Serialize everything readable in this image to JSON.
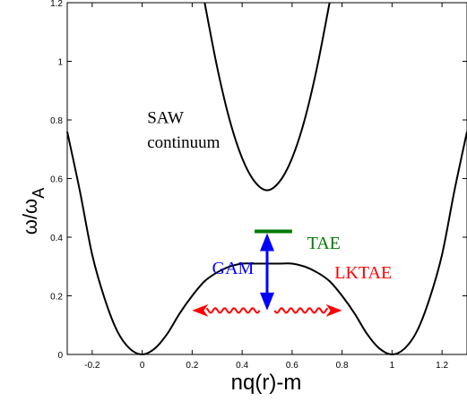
{
  "chart_data": {
    "type": "line",
    "title": "",
    "xlabel": "nq(r)-m",
    "ylabel": {
      "main": "ω/ω",
      "sub": "A"
    },
    "xlim": [
      -0.3,
      1.3
    ],
    "ylim": [
      0,
      1.2
    ],
    "x_ticks": [
      -0.2,
      0,
      0.2,
      0.4,
      0.6,
      0.8,
      1,
      1.2
    ],
    "x_tick_labels": [
      "-0.2",
      "0",
      "0.2",
      "0.4",
      "0.6",
      "0.8",
      "1",
      "1.2"
    ],
    "y_ticks": [
      0,
      0.2,
      0.4,
      0.6,
      0.8,
      1,
      1.2
    ],
    "y_tick_labels": [
      "0",
      "0.2",
      "0.4",
      "0.6",
      "0.8",
      "1",
      "1.2"
    ],
    "grid": false,
    "legend": "none",
    "series": [
      {
        "color": "#000000",
        "x": [
          -0.3,
          -0.25,
          -0.2,
          -0.15,
          -0.1,
          -0.05,
          0,
          0.05,
          0.1,
          0.15,
          0.2,
          0.25,
          0.3,
          0.35,
          0.4,
          0.45,
          0.5,
          0.55,
          0.6,
          0.65,
          0.7,
          0.75,
          0.8,
          0.85,
          0.9,
          0.95,
          1,
          1.05,
          1.1,
          1.15,
          1.2,
          1.25,
          1.3
        ],
        "y": [
          0.76,
          0.56,
          0.34,
          0.19,
          0.08,
          0.02,
          0,
          0.02,
          0.07,
          0.14,
          0.2,
          0.25,
          0.28,
          0.3,
          0.31,
          0.31,
          0.31,
          0.31,
          0.31,
          0.3,
          0.28,
          0.25,
          0.2,
          0.14,
          0.07,
          0.02,
          0,
          0.02,
          0.08,
          0.19,
          0.34,
          0.56,
          0.76
        ]
      },
      {
        "color": "#000000",
        "x": [
          0.25,
          0.3,
          0.35,
          0.4,
          0.45,
          0.5,
          0.55,
          0.6,
          0.65,
          0.7,
          0.75
        ],
        "y": [
          1.2,
          0.98,
          0.8,
          0.67,
          0.59,
          0.56,
          0.59,
          0.67,
          0.8,
          0.98,
          1.2
        ]
      }
    ],
    "annotations": [
      {
        "id": "saw-line1",
        "text": "SAW",
        "x": 0.02,
        "y": 0.79,
        "color": "#000000"
      },
      {
        "id": "saw-line2",
        "text": "continuum",
        "x": 0.02,
        "y": 0.705,
        "color": "#000000"
      },
      {
        "id": "tae",
        "text": "TAE",
        "x": 0.66,
        "y": 0.36,
        "color": "#007a00"
      },
      {
        "id": "gam",
        "text": "GAM",
        "x": 0.28,
        "y": 0.275,
        "color": "#0000ff"
      },
      {
        "id": "lktae",
        "text": "LKTAE",
        "x": 0.77,
        "y": 0.26,
        "color": "#ff0000"
      }
    ],
    "markers": {
      "tae_level": {
        "x_from": 0.45,
        "x_to": 0.6,
        "y": 0.42,
        "color": "#007a00"
      },
      "gam_arrow": {
        "x": 0.5,
        "y_from": 0.15,
        "y_to": 0.42,
        "color": "#0000ff"
      },
      "lktae_arrows": {
        "y": 0.15,
        "left": [
          0.47,
          0.2
        ],
        "right": [
          0.53,
          0.8
        ],
        "color": "#ff0000"
      }
    }
  }
}
